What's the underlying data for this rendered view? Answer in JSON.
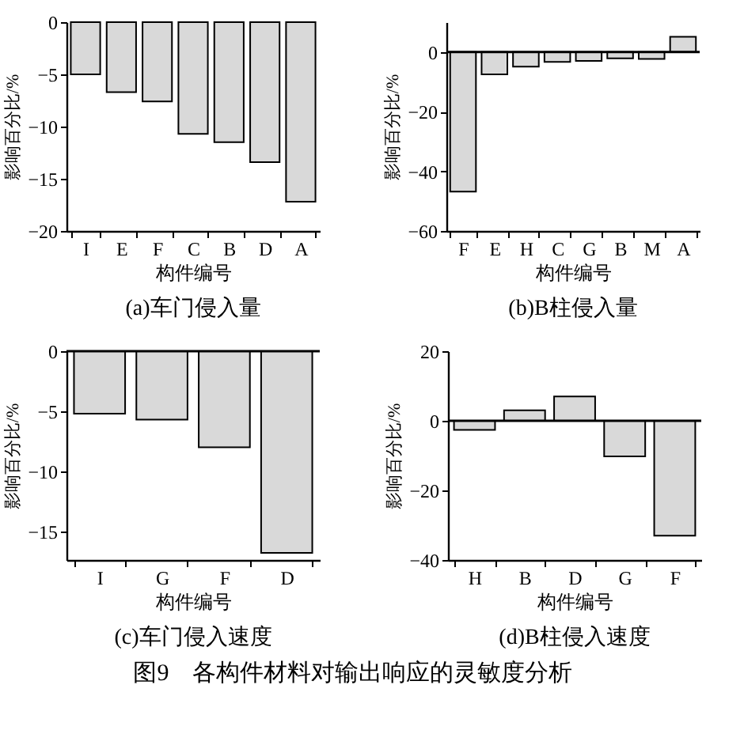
{
  "chart_data": [
    {
      "type": "bar",
      "title": "(a)车门侵入量",
      "xlabel": "构件编号",
      "ylabel": "影响百分比/%",
      "categories": [
        "I",
        "E",
        "F",
        "C",
        "B",
        "D",
        "A"
      ],
      "values": [
        -5.0,
        -6.7,
        -7.6,
        -10.7,
        -11.5,
        -13.4,
        -17.2
      ],
      "color": "#d9d9d9",
      "ylim": [
        -20,
        0
      ],
      "yticks": [
        0,
        -5,
        -10,
        -15,
        -20
      ]
    },
    {
      "type": "bar",
      "title": "(b)B柱侵入量",
      "xlabel": "构件编号",
      "ylabel": "影响百分比/%",
      "categories": [
        "F",
        "E",
        "H",
        "C",
        "G",
        "B",
        "M",
        "A"
      ],
      "values": [
        -46.8,
        -7.5,
        -4.9,
        -3.3,
        -3.0,
        -2.1,
        -2.3,
        5.1
      ],
      "color": "#d9d9d9",
      "ylim": [
        -60,
        10
      ],
      "yticks": [
        0,
        -20,
        -40,
        -60
      ],
      "ref_lines": [
        {
          "axis": "y",
          "value": 0
        }
      ]
    },
    {
      "type": "bar",
      "title": "(c)车门侵入速度",
      "xlabel": "构件编号",
      "ylabel": "影响百分比/%",
      "categories": [
        "I",
        "G",
        "F",
        "D"
      ],
      "values": [
        -5.2,
        -5.7,
        -8.0,
        -16.8
      ],
      "color": "#d9d9d9",
      "ylim": [
        -17.4,
        0
      ],
      "yticks": [
        0,
        -5,
        -10,
        -15
      ],
      "ref_lines": [
        {
          "axis": "y",
          "value": 0
        }
      ]
    },
    {
      "type": "bar",
      "title": "(d)B柱侵入速度",
      "xlabel": "构件编号",
      "ylabel": "影响百分比/%",
      "categories": [
        "H",
        "B",
        "D",
        "G",
        "F"
      ],
      "values": [
        -2.6,
        3.0,
        7.0,
        -10.2,
        -33.0
      ],
      "color": "#d9d9d9",
      "ylim": [
        -40,
        20
      ],
      "yticks": [
        20,
        0,
        -20,
        -40
      ],
      "ref_lines": [
        {
          "axis": "y",
          "value": 0
        }
      ],
      "annotations": [
        "图9　各构件材料对输出响应的灵敏度分析"
      ]
    }
  ]
}
